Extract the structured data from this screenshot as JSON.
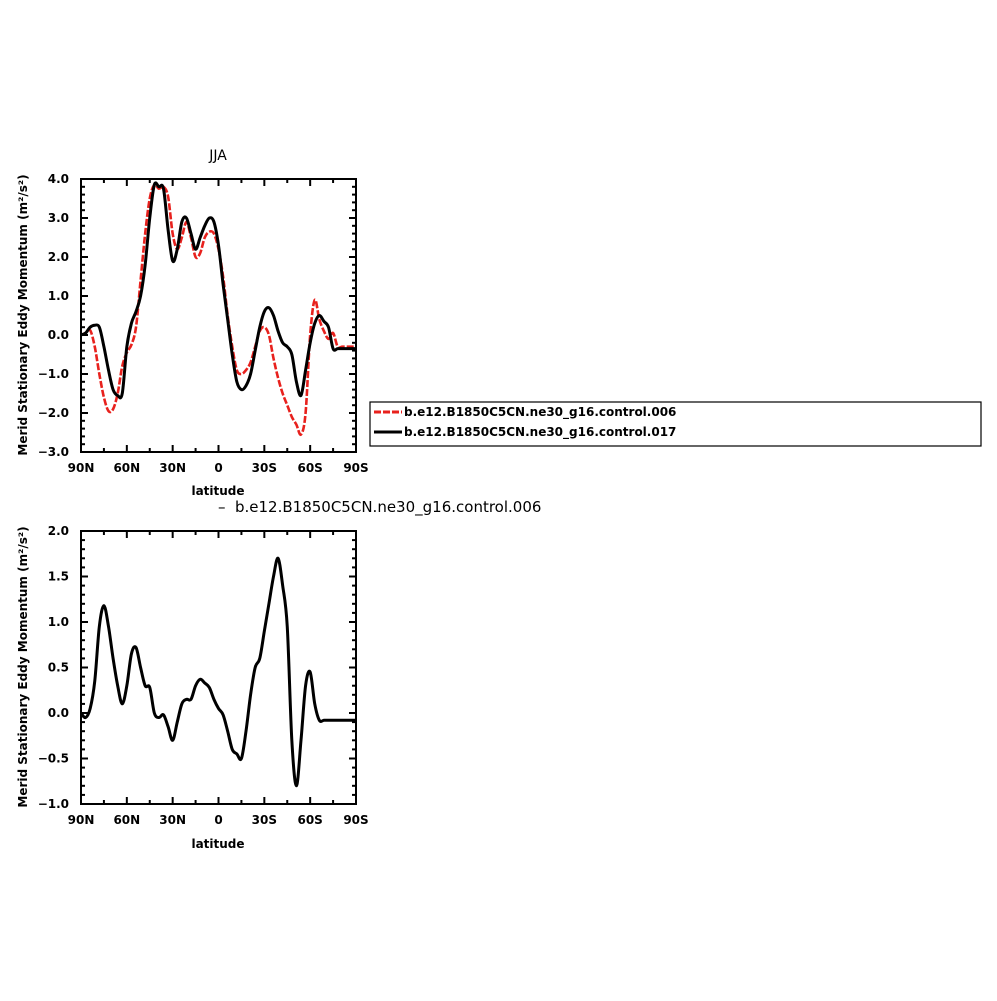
{
  "chart_data": [
    {
      "type": "line",
      "title": "JJA",
      "xlabel": "latitude",
      "ylabel": "Merid Stationary Eddy Momentum (m²/s²)",
      "xlim": [
        90,
        -90
      ],
      "ylim": [
        -3.0,
        4.0
      ],
      "x_ticks": [
        90,
        60,
        30,
        0,
        -30,
        -60,
        -90
      ],
      "x_tick_labels": [
        "90N",
        "60N",
        "30N",
        "0",
        "30S",
        "60S",
        "90S"
      ],
      "y_ticks": [
        -3,
        -2,
        -1,
        0,
        1,
        2,
        3,
        4
      ],
      "y_tick_labels": [
        "−3.0",
        "−2.0",
        "−1.0",
        "0.0",
        "1.0",
        "2.0",
        "3.0",
        "4.0"
      ],
      "legend_position": "right",
      "series": [
        {
          "name": "b.e12.B1850C5CN.ne30_g16.control.006",
          "color": "#e8211d",
          "style": "dashed",
          "x": [
            90,
            87,
            84,
            81,
            78,
            75,
            72,
            69,
            66,
            63,
            60,
            57,
            54,
            51,
            48,
            45,
            42,
            39,
            36,
            33,
            30,
            27,
            24,
            21,
            18,
            15,
            12,
            9,
            6,
            3,
            0,
            -3,
            -6,
            -9,
            -12,
            -15,
            -18,
            -21,
            -24,
            -27,
            -30,
            -33,
            -36,
            -39,
            -42,
            -45,
            -48,
            -51,
            -54,
            -57,
            -60,
            -63,
            -66,
            -69,
            -72,
            -75,
            -78,
            -81,
            -84,
            -87,
            -90
          ],
          "y": [
            0.0,
            0.05,
            0.12,
            -0.3,
            -1.0,
            -1.6,
            -1.95,
            -1.9,
            -1.5,
            -0.8,
            -0.45,
            -0.25,
            0.2,
            1.4,
            2.6,
            3.5,
            3.85,
            3.75,
            3.8,
            3.55,
            2.6,
            2.2,
            2.5,
            2.9,
            2.5,
            2.0,
            2.1,
            2.5,
            2.65,
            2.6,
            2.2,
            1.5,
            0.5,
            -0.3,
            -0.9,
            -1.0,
            -0.9,
            -0.7,
            -0.3,
            0.1,
            0.2,
            0.0,
            -0.6,
            -1.1,
            -1.5,
            -1.8,
            -2.1,
            -2.3,
            -2.55,
            -2.0,
            0.0,
            0.9,
            0.4,
            0.1,
            -0.1,
            0.05,
            -0.3,
            -0.3,
            -0.3,
            -0.3,
            -0.3
          ]
        },
        {
          "name": "b.e12.B1850C5CN.ne30_g16.control.017",
          "color": "#000000",
          "style": "solid",
          "x": [
            90,
            87,
            84,
            81,
            78,
            75,
            72,
            69,
            66,
            63,
            60,
            57,
            54,
            51,
            48,
            45,
            42,
            39,
            36,
            33,
            30,
            27,
            24,
            21,
            18,
            15,
            12,
            9,
            6,
            3,
            0,
            -3,
            -6,
            -9,
            -12,
            -15,
            -18,
            -21,
            -24,
            -27,
            -30,
            -33,
            -36,
            -39,
            -42,
            -45,
            -48,
            -51,
            -54,
            -57,
            -60,
            -63,
            -66,
            -69,
            -72,
            -75,
            -78,
            -81,
            -84,
            -87,
            -90
          ],
          "y": [
            0.0,
            0.05,
            0.2,
            0.25,
            0.2,
            -0.3,
            -0.9,
            -1.4,
            -1.55,
            -1.5,
            -0.3,
            0.3,
            0.6,
            1.0,
            1.8,
            3.0,
            3.85,
            3.8,
            3.75,
            2.7,
            1.9,
            2.2,
            2.9,
            3.0,
            2.6,
            2.2,
            2.5,
            2.8,
            3.0,
            2.9,
            2.3,
            1.3,
            0.4,
            -0.5,
            -1.2,
            -1.4,
            -1.3,
            -1.0,
            -0.4,
            0.2,
            0.6,
            0.7,
            0.5,
            0.1,
            -0.2,
            -0.3,
            -0.5,
            -1.2,
            -1.55,
            -0.9,
            -0.2,
            0.3,
            0.5,
            0.35,
            0.2,
            -0.35,
            -0.35,
            -0.35,
            -0.35,
            -0.35,
            -0.35
          ]
        }
      ]
    },
    {
      "type": "line",
      "title": "",
      "subtitle": "b.e12.B1850C5CN.ne30_g16.control.006",
      "xlabel": "latitude",
      "ylabel": "Merid Stationary Eddy Momentum (m²/s²)",
      "xlim": [
        90,
        -90
      ],
      "ylim": [
        -1.0,
        2.0
      ],
      "x_ticks": [
        90,
        60,
        30,
        0,
        -30,
        -60,
        -90
      ],
      "x_tick_labels": [
        "90N",
        "60N",
        "30N",
        "0",
        "30S",
        "60S",
        "90S"
      ],
      "y_ticks": [
        -1.0,
        -0.5,
        0.0,
        0.5,
        1.0,
        1.5,
        2.0
      ],
      "y_tick_labels": [
        "−1.0",
        "−0.5",
        "0.0",
        "0.5",
        "1.0",
        "1.5",
        "2.0"
      ],
      "series": [
        {
          "name": "",
          "color": "#000000",
          "style": "solid",
          "x": [
            90,
            87,
            84,
            81,
            78,
            75,
            72,
            69,
            66,
            63,
            60,
            57,
            54,
            51,
            48,
            45,
            42,
            39,
            36,
            33,
            30,
            27,
            24,
            21,
            18,
            15,
            12,
            9,
            6,
            3,
            0,
            -3,
            -6,
            -9,
            -12,
            -15,
            -18,
            -21,
            -24,
            -27,
            -30,
            -33,
            -36,
            -39,
            -42,
            -45,
            -48,
            -51,
            -54,
            -57,
            -60,
            -63,
            -66,
            -69,
            -72,
            -75,
            -78,
            -81,
            -84,
            -87,
            -90
          ],
          "y": [
            0.0,
            -0.05,
            0.05,
            0.35,
            0.95,
            1.18,
            0.95,
            0.6,
            0.3,
            0.1,
            0.3,
            0.65,
            0.72,
            0.5,
            0.3,
            0.28,
            0.0,
            -0.05,
            -0.02,
            -0.15,
            -0.3,
            -0.1,
            0.1,
            0.15,
            0.15,
            0.3,
            0.37,
            0.33,
            0.28,
            0.15,
            0.05,
            -0.02,
            -0.2,
            -0.4,
            -0.45,
            -0.5,
            -0.2,
            0.2,
            0.5,
            0.6,
            0.9,
            1.2,
            1.5,
            1.7,
            1.4,
            0.95,
            -0.3,
            -0.8,
            -0.3,
            0.3,
            0.45,
            0.1,
            -0.08,
            -0.08,
            -0.08,
            -0.08,
            -0.08,
            -0.08,
            -0.08,
            -0.08,
            -0.08
          ]
        }
      ]
    }
  ]
}
